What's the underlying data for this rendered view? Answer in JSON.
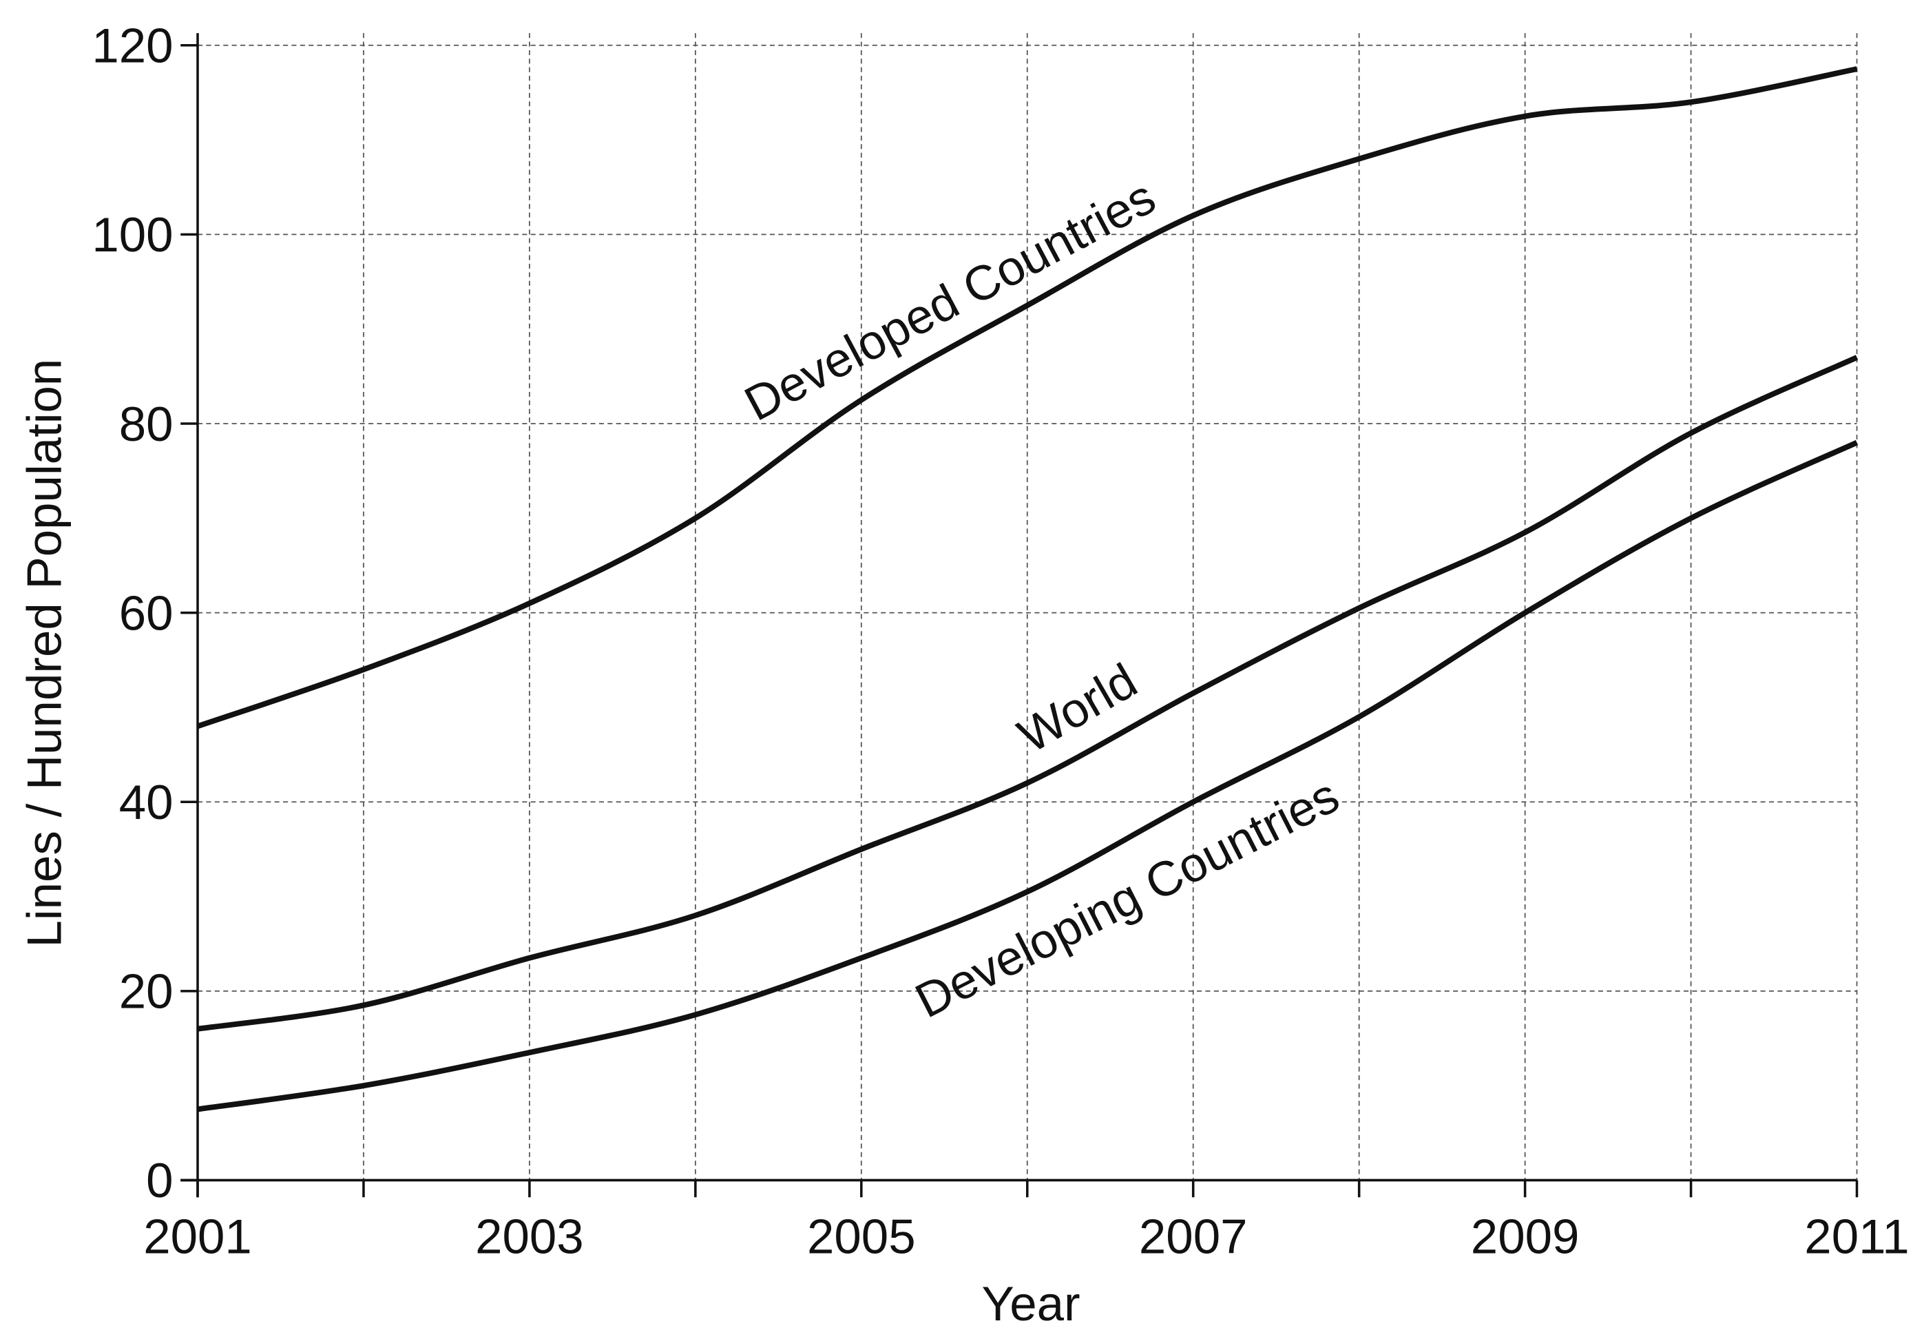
{
  "chart_data": {
    "type": "line",
    "x_label": "Year",
    "y_label": "Lines / Hundred Population",
    "x": [
      2001,
      2002,
      2003,
      2004,
      2005,
      2006,
      2007,
      2008,
      2009,
      2010,
      2011
    ],
    "series": [
      {
        "name": "Developed Countries",
        "color": "#111111",
        "values": [
          48,
          54,
          61,
          70,
          82.5,
          92.5,
          102,
          108,
          112.5,
          114,
          117.5
        ]
      },
      {
        "name": "World",
        "color": "#111111",
        "values": [
          16,
          18.5,
          23.5,
          28,
          35,
          42,
          51.5,
          60.5,
          68.5,
          79,
          87
        ]
      },
      {
        "name": "Developing Countries",
        "color": "#111111",
        "values": [
          7.5,
          10,
          13.5,
          17.5,
          23.5,
          30.5,
          40,
          49,
          60,
          70,
          78
        ]
      }
    ],
    "xlim": [
      2001,
      2011
    ],
    "xticks": [
      2001,
      2003,
      2005,
      2007,
      2009,
      2011
    ],
    "ylim": [
      0,
      120
    ],
    "yticks": [
      0,
      20,
      40,
      60,
      80,
      100,
      120
    ],
    "grid": true,
    "minor_x_grid": true
  }
}
